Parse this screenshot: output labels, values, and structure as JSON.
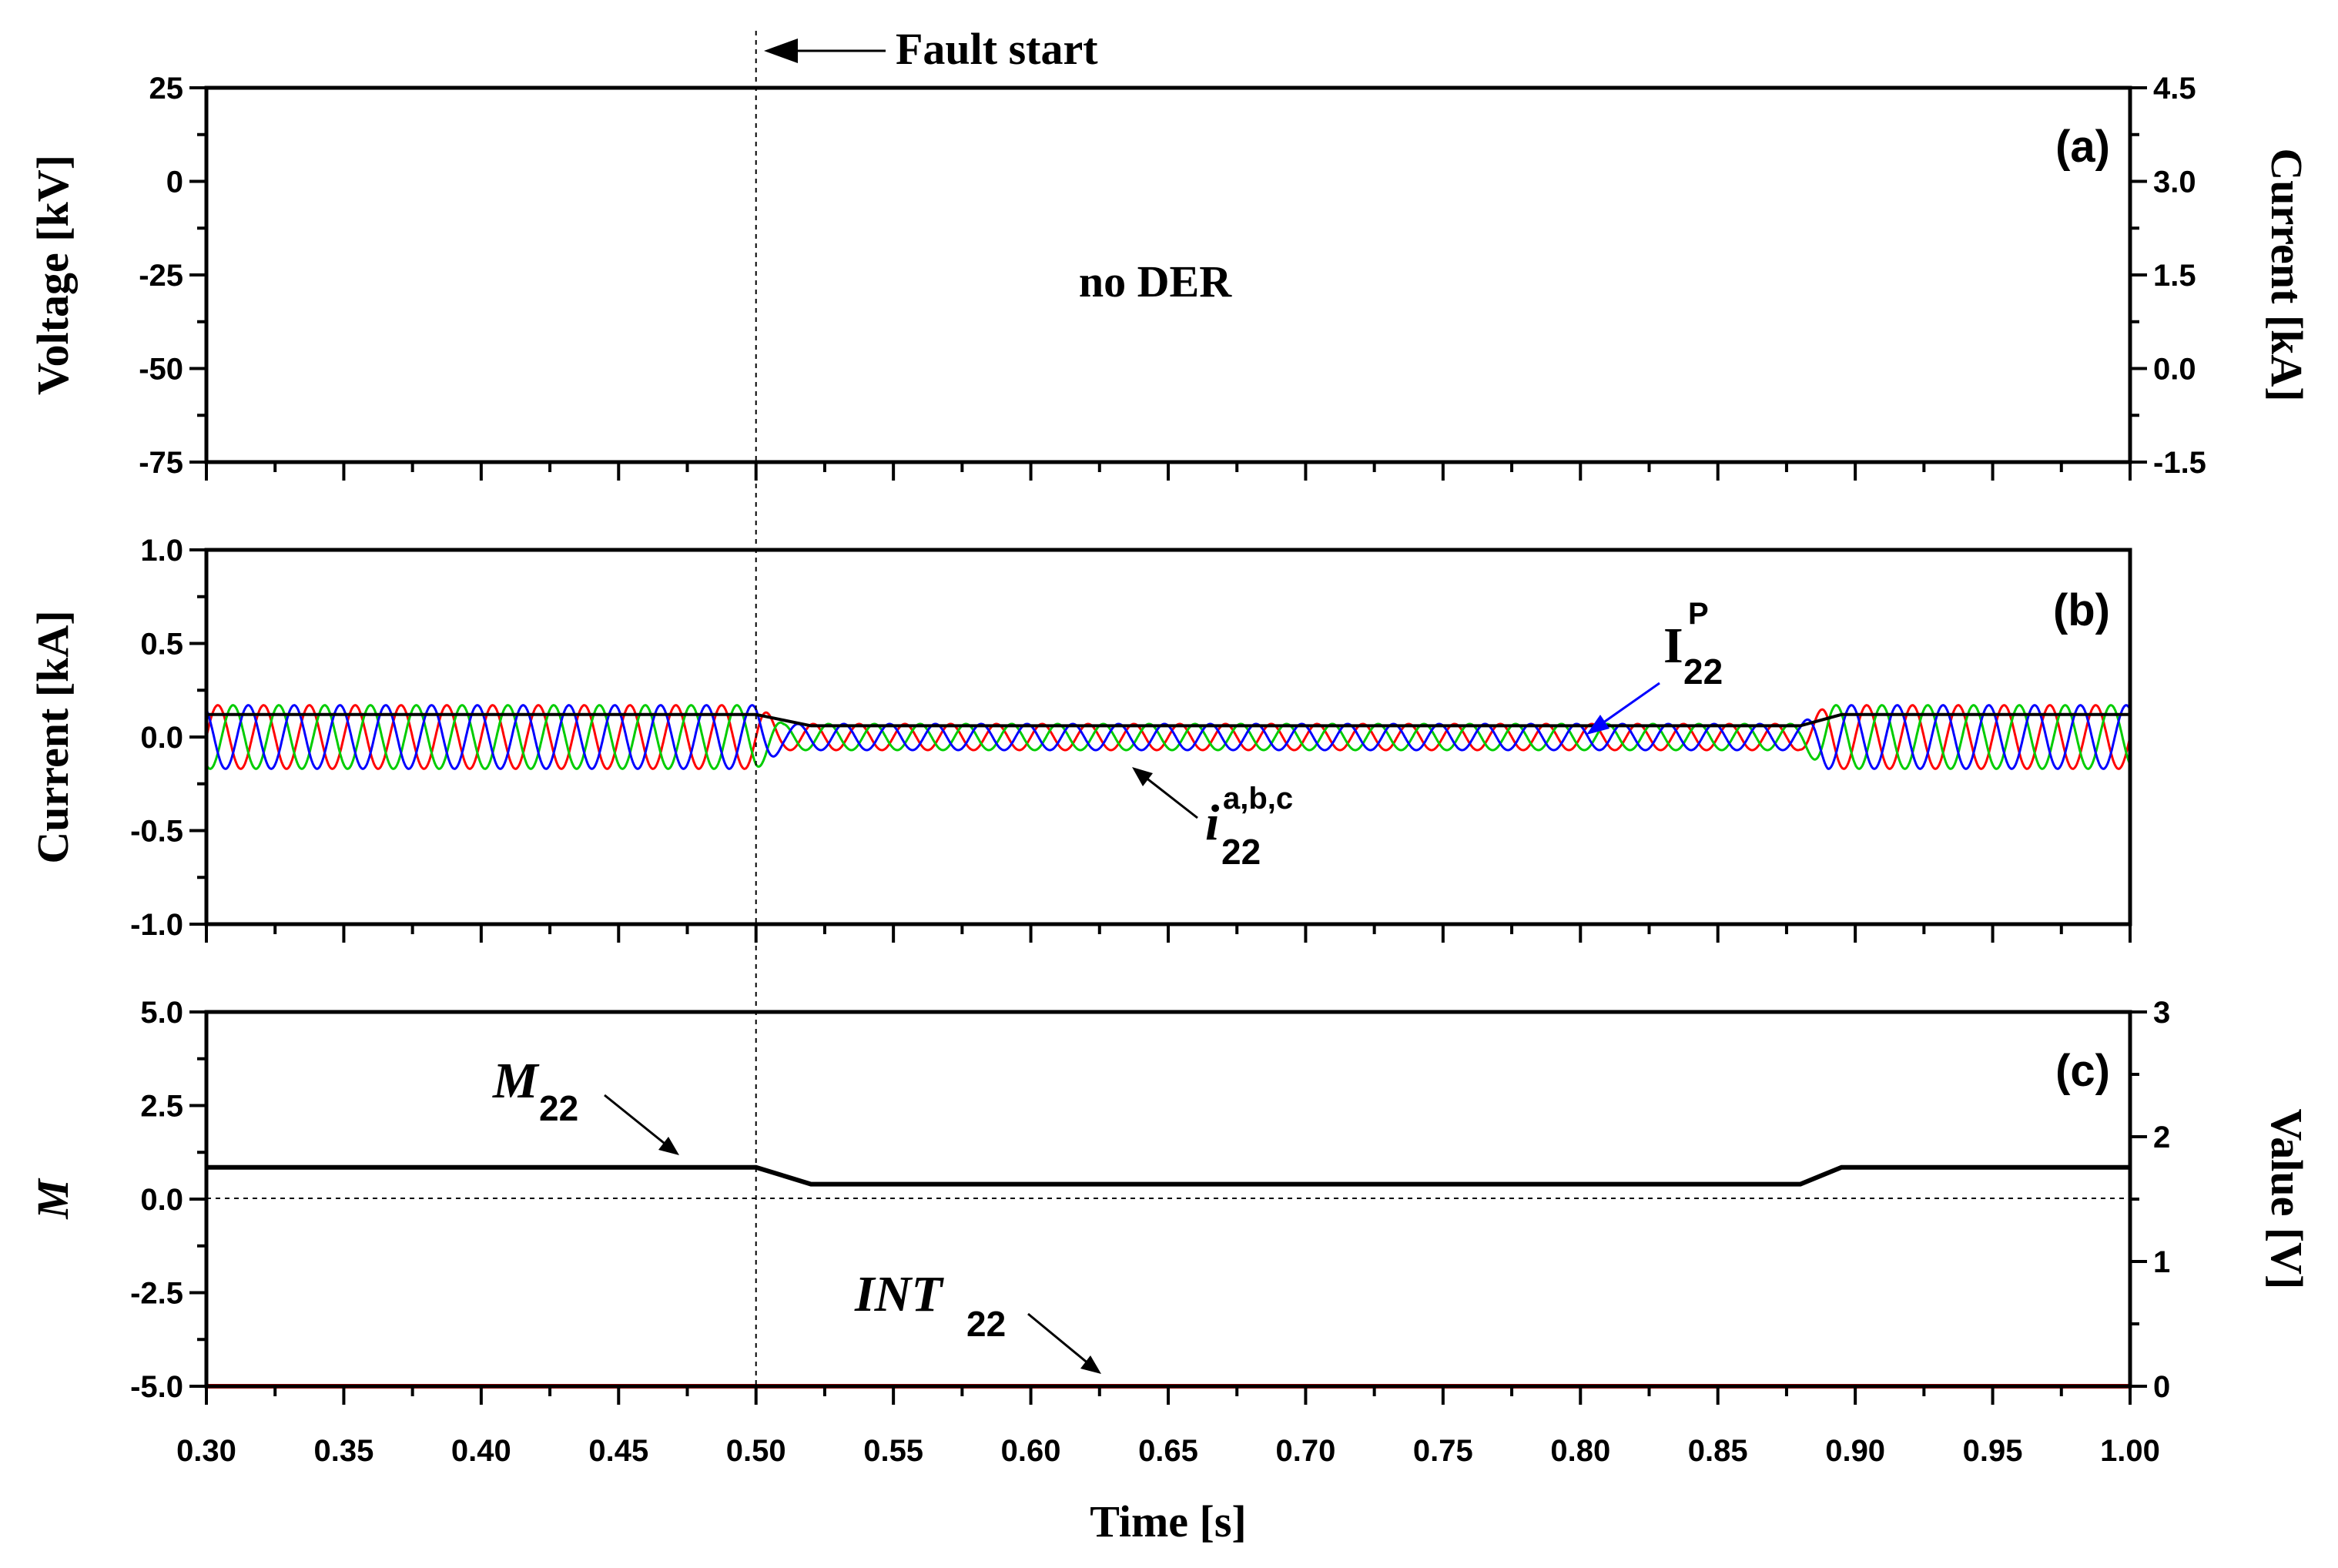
{
  "chart_data": [
    {
      "panel": "(a)",
      "type": "line",
      "ylabel": "Voltage [kV]",
      "y2label": "Current [kA]",
      "xlim": [
        0.3,
        1.0
      ],
      "ylim": [
        -75,
        25
      ],
      "y2lim": [
        -1.5,
        4.5
      ],
      "yticks": [
        "25",
        "0",
        "-25",
        "-50",
        "-75"
      ],
      "y2ticks": [
        "4.5",
        "3.0",
        "1.5",
        "0.0",
        "-1.5"
      ],
      "annotation": "no DER",
      "series": []
    },
    {
      "panel": "(b)",
      "type": "line",
      "ylabel": "Current [kA]",
      "xlim": [
        0.3,
        1.0
      ],
      "ylim": [
        -1.0,
        1.0
      ],
      "yticks": [
        "1.0",
        "0.5",
        "0.0",
        "-0.5",
        "-1.0"
      ],
      "series": [
        {
          "color": "#ff0000",
          "description": "phase current",
          "amplitude_kA": [
            [
              0.3,
              0.17
            ],
            [
              0.5,
              0.17
            ],
            [
              0.51,
              0.07
            ],
            [
              0.88,
              0.07
            ],
            [
              0.89,
              0.17
            ],
            [
              1.0,
              0.17
            ]
          ]
        },
        {
          "color": "#00cc00",
          "description": "phase current",
          "amplitude_kA": [
            [
              0.3,
              0.17
            ],
            [
              0.5,
              0.17
            ],
            [
              0.51,
              0.07
            ],
            [
              0.88,
              0.07
            ],
            [
              0.89,
              0.17
            ],
            [
              1.0,
              0.17
            ]
          ]
        },
        {
          "color": "#0000ff",
          "description": "phase current",
          "amplitude_kA": [
            [
              0.3,
              0.17
            ],
            [
              0.5,
              0.17
            ],
            [
              0.51,
              0.07
            ],
            [
              0.88,
              0.07
            ],
            [
              0.89,
              0.17
            ],
            [
              1.0,
              0.17
            ]
          ]
        },
        {
          "color": "#000000",
          "description": "peak current",
          "points": [
            [
              0.3,
              0.12
            ],
            [
              0.5,
              0.12
            ],
            [
              0.52,
              0.06
            ],
            [
              0.88,
              0.06
            ],
            [
              0.895,
              0.12
            ],
            [
              1.0,
              0.12
            ]
          ]
        }
      ],
      "annotations": {
        "peak": {
          "base": "I",
          "sup": "P",
          "sub": "22",
          "color": "#0000ff"
        },
        "phase": {
          "base": "i",
          "sup": "a,b,c",
          "sub": "22",
          "color": "#000000"
        }
      }
    },
    {
      "panel": "(c)",
      "type": "line",
      "ylabel": "M",
      "y2label": "Value [V]",
      "xlabel": "Time [s]",
      "xlim": [
        0.3,
        1.0
      ],
      "ylim": [
        -5.0,
        5.0
      ],
      "y2lim": [
        0,
        3
      ],
      "yticks": [
        "5.0",
        "2.5",
        "0.0",
        "-2.5",
        "-5.0"
      ],
      "y2ticks": [
        "3",
        "2",
        "1",
        "0"
      ],
      "xticks": [
        "0.30",
        "0.35",
        "0.40",
        "0.45",
        "0.50",
        "0.55",
        "0.60",
        "0.65",
        "0.70",
        "0.75",
        "0.80",
        "0.85",
        "0.90",
        "0.95",
        "1.00"
      ],
      "series": [
        {
          "name_base": "M",
          "name_sub": "22",
          "color": "#000000",
          "points": [
            [
              0.3,
              0.85
            ],
            [
              0.5,
              0.85
            ],
            [
              0.52,
              0.4
            ],
            [
              0.88,
              0.4
            ],
            [
              0.895,
              0.85
            ],
            [
              1.0,
              0.85
            ]
          ]
        },
        {
          "name_base": "INT",
          "name_sub": "22",
          "color": "#ff0000",
          "axis": "y2",
          "points": [
            [
              0.3,
              0
            ],
            [
              1.0,
              0
            ]
          ]
        }
      ]
    }
  ],
  "fault": {
    "label": "Fault start",
    "time": 0.5
  }
}
